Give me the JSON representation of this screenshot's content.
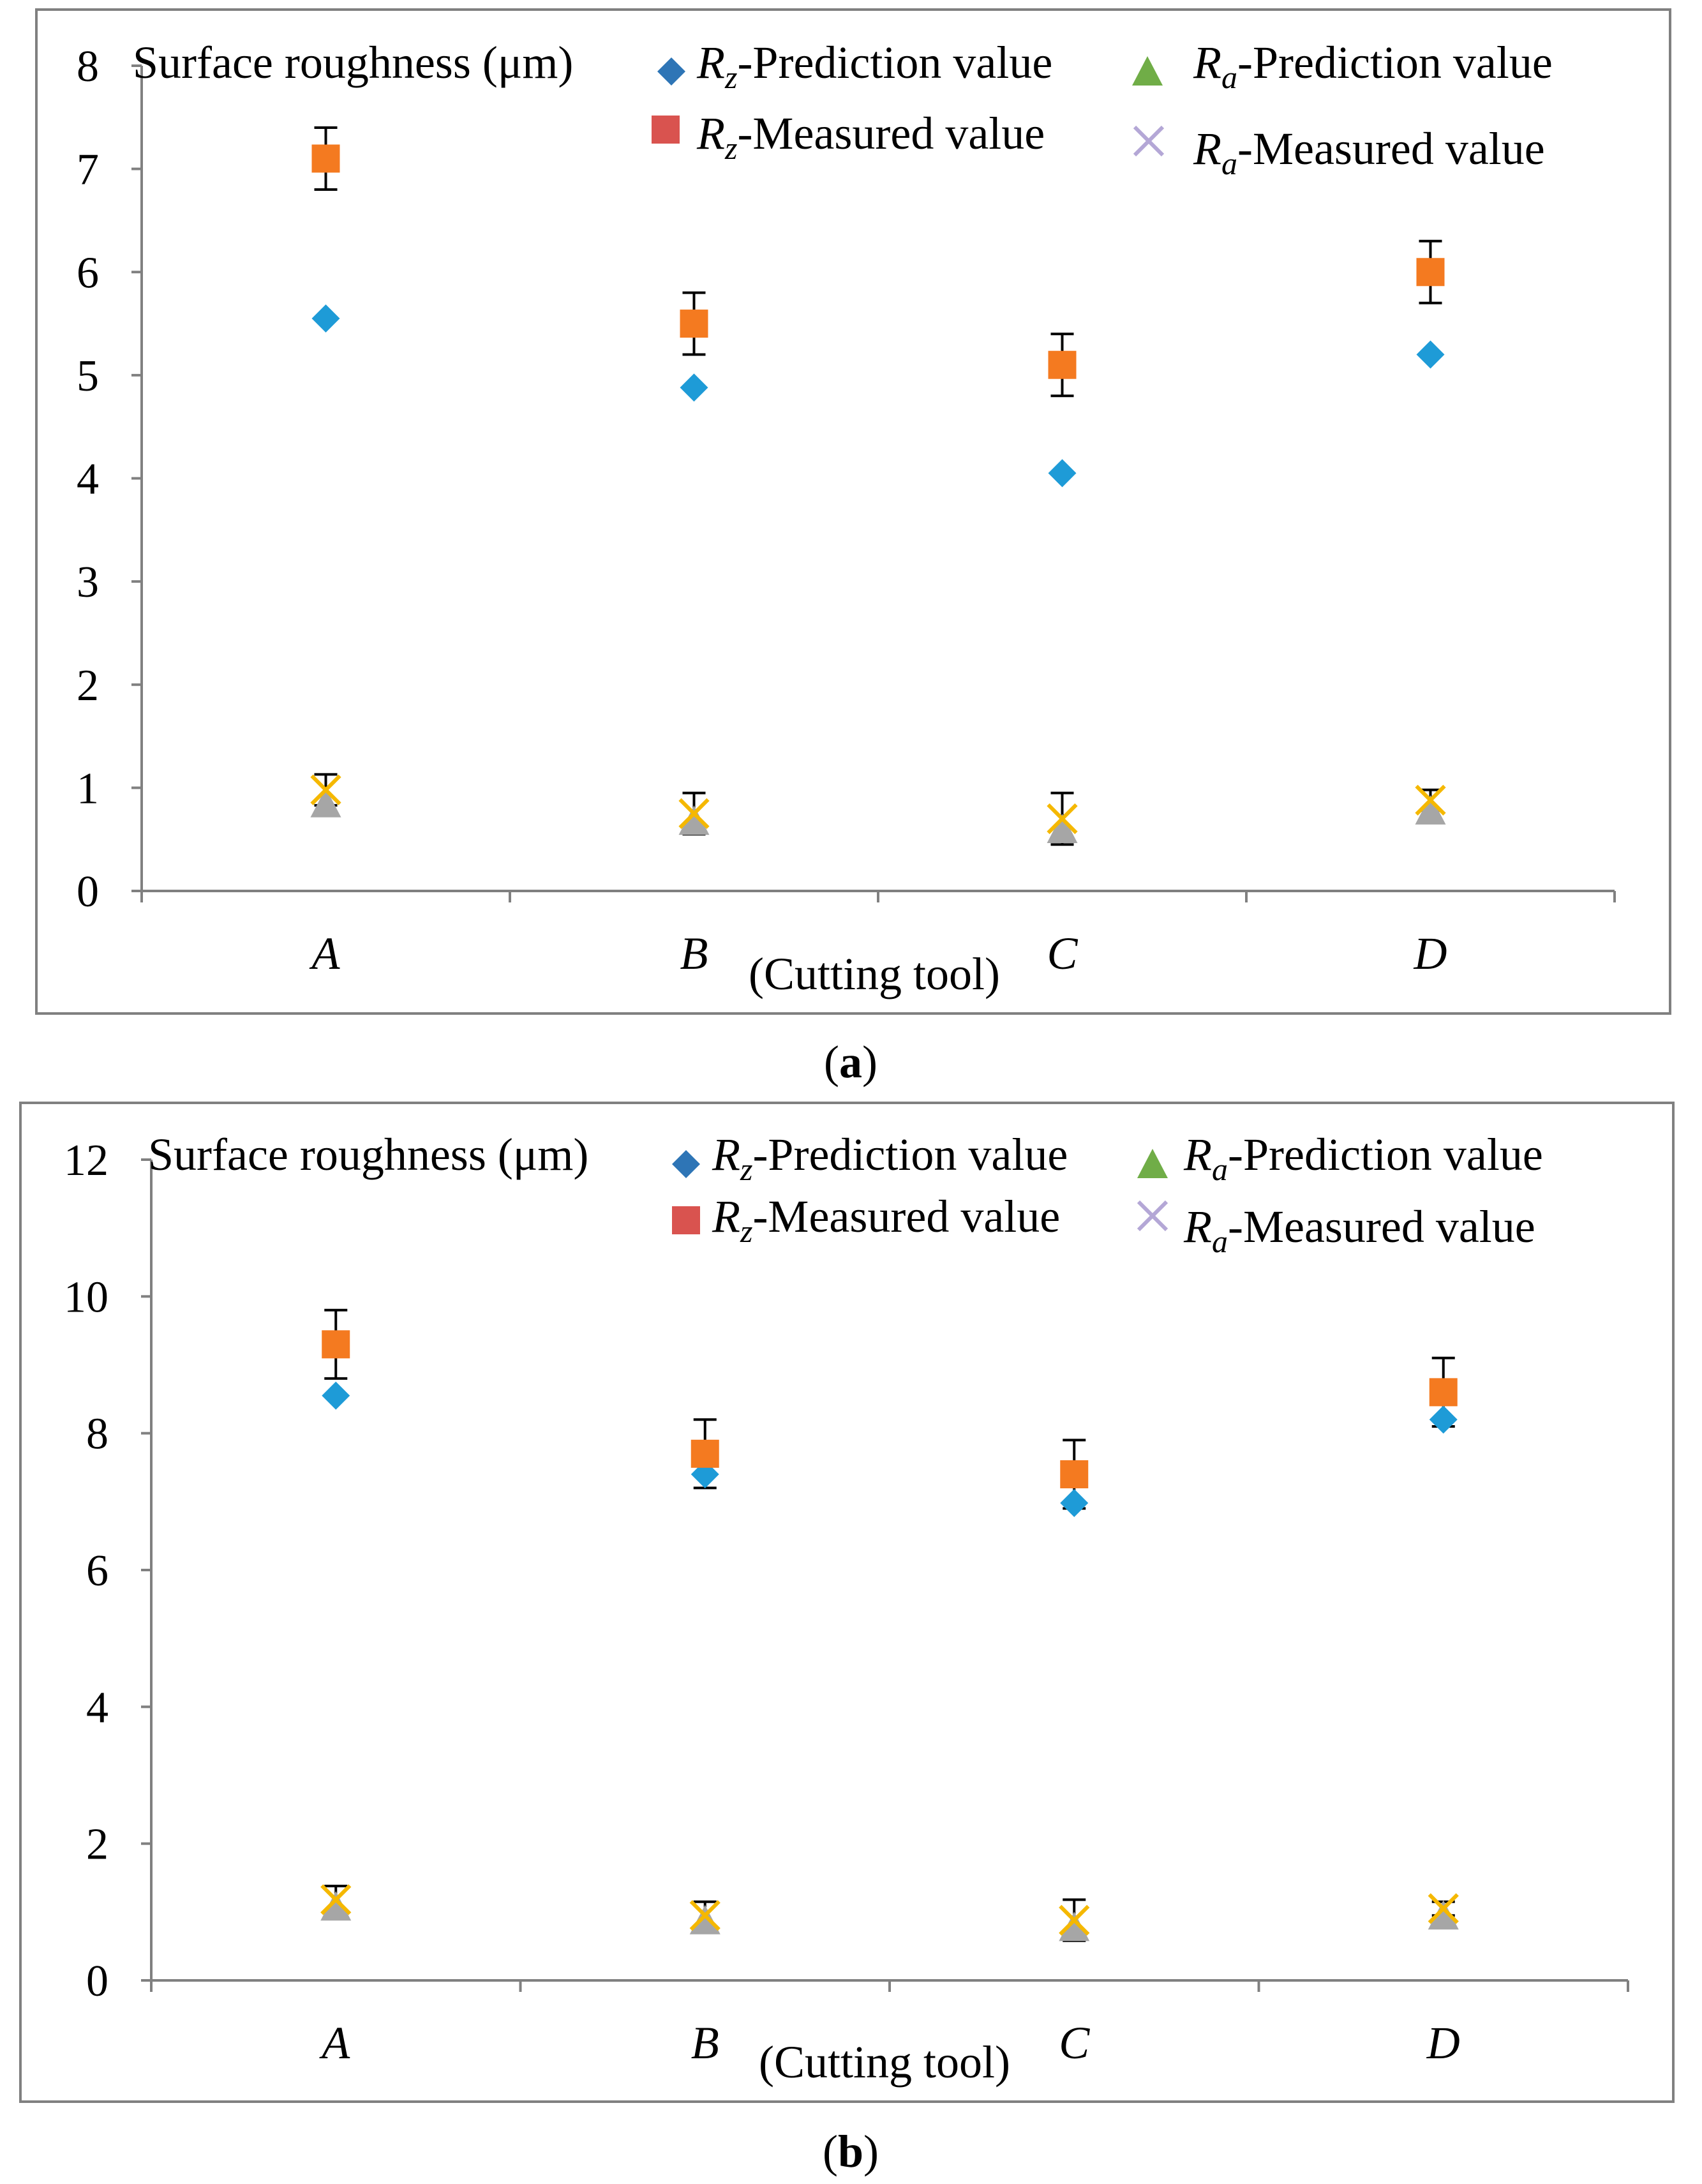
{
  "figure": {
    "panels": [
      {
        "caption_letter": "a"
      },
      {
        "caption_letter": "b"
      }
    ]
  },
  "legend_labels": {
    "rz_pred": {
      "sym": "R",
      "sub": "z",
      "rest": "-Prediction value"
    },
    "ra_pred": {
      "sym": "R",
      "sub": "a",
      "rest": "-Prediction value"
    },
    "rz_meas": {
      "sym": "R",
      "sub": "z",
      "rest": "-Measured value"
    },
    "ra_meas_a": {
      "sym": "R",
      "sub": "a",
      "rest": "-Measured value"
    },
    "ra_meas_b": {
      "sym": "R",
      "sub": "a",
      "rest": "-Measured value"
    }
  },
  "colors": {
    "rz_pred": "#1e9bd7",
    "rz_meas": "#f47a20",
    "ra_pred": "#a6a6a6",
    "ra_meas": "#f5b800",
    "legend_rz_pred": "#2e75b6",
    "legend_rz_meas": "#d9534f",
    "legend_ra_pred": "#70ad47",
    "legend_ra_meas": "#b4a7d6",
    "frame": "#808080",
    "axis": "#808080"
  },
  "chart_data": [
    {
      "type": "scatter",
      "ylabel": "Surface roughness (μm)",
      "xlabel": "(Cutting tool)",
      "categories": [
        "A",
        "B",
        "C",
        "D"
      ],
      "ylim": [
        0,
        8
      ],
      "yticks": [
        0,
        1,
        2,
        3,
        4,
        5,
        6,
        7,
        8
      ],
      "grid": false,
      "legend_position": "top",
      "series": [
        {
          "name": "Rz-Prediction value",
          "key": "rz_pred",
          "marker": "diamond",
          "values": [
            5.55,
            4.88,
            4.05,
            5.2
          ]
        },
        {
          "name": "Rz-Measured value",
          "key": "rz_meas",
          "marker": "square",
          "values": [
            7.1,
            5.5,
            5.1,
            6.0
          ],
          "error": [
            0.3,
            0.3,
            0.3,
            0.3
          ]
        },
        {
          "name": "Ra-Prediction value",
          "key": "ra_pred",
          "marker": "triangle",
          "values": [
            0.85,
            0.68,
            0.6,
            0.78
          ]
        },
        {
          "name": "Ra-Measured value",
          "key": "ra_meas",
          "marker": "x",
          "values": [
            0.98,
            0.75,
            0.7,
            0.88
          ],
          "error": [
            0.15,
            0.2,
            0.25,
            0.1
          ]
        }
      ]
    },
    {
      "type": "scatter",
      "ylabel": "Surface roughness (μm)",
      "xlabel": "(Cutting tool)",
      "categories": [
        "A",
        "B",
        "C",
        "D"
      ],
      "ylim": [
        0,
        12
      ],
      "yticks": [
        0,
        2,
        4,
        6,
        8,
        10,
        12
      ],
      "grid": false,
      "legend_position": "top",
      "series": [
        {
          "name": "Rz-Prediction value",
          "key": "rz_pred",
          "marker": "diamond",
          "values": [
            8.55,
            7.4,
            6.98,
            8.2
          ]
        },
        {
          "name": "Rz-Measured value",
          "key": "rz_meas",
          "marker": "square",
          "values": [
            9.3,
            7.7,
            7.4,
            8.6
          ],
          "error": [
            0.5,
            0.5,
            0.5,
            0.5
          ]
        },
        {
          "name": "Ra-Prediction value",
          "key": "ra_pred",
          "marker": "triangle",
          "values": [
            1.08,
            0.88,
            0.78,
            0.95
          ]
        },
        {
          "name": "Ra-Measured value",
          "key": "ra_meas",
          "marker": "x",
          "values": [
            1.18,
            0.95,
            0.88,
            1.05
          ],
          "error": [
            0.2,
            0.2,
            0.3,
            0.1
          ]
        }
      ]
    }
  ]
}
